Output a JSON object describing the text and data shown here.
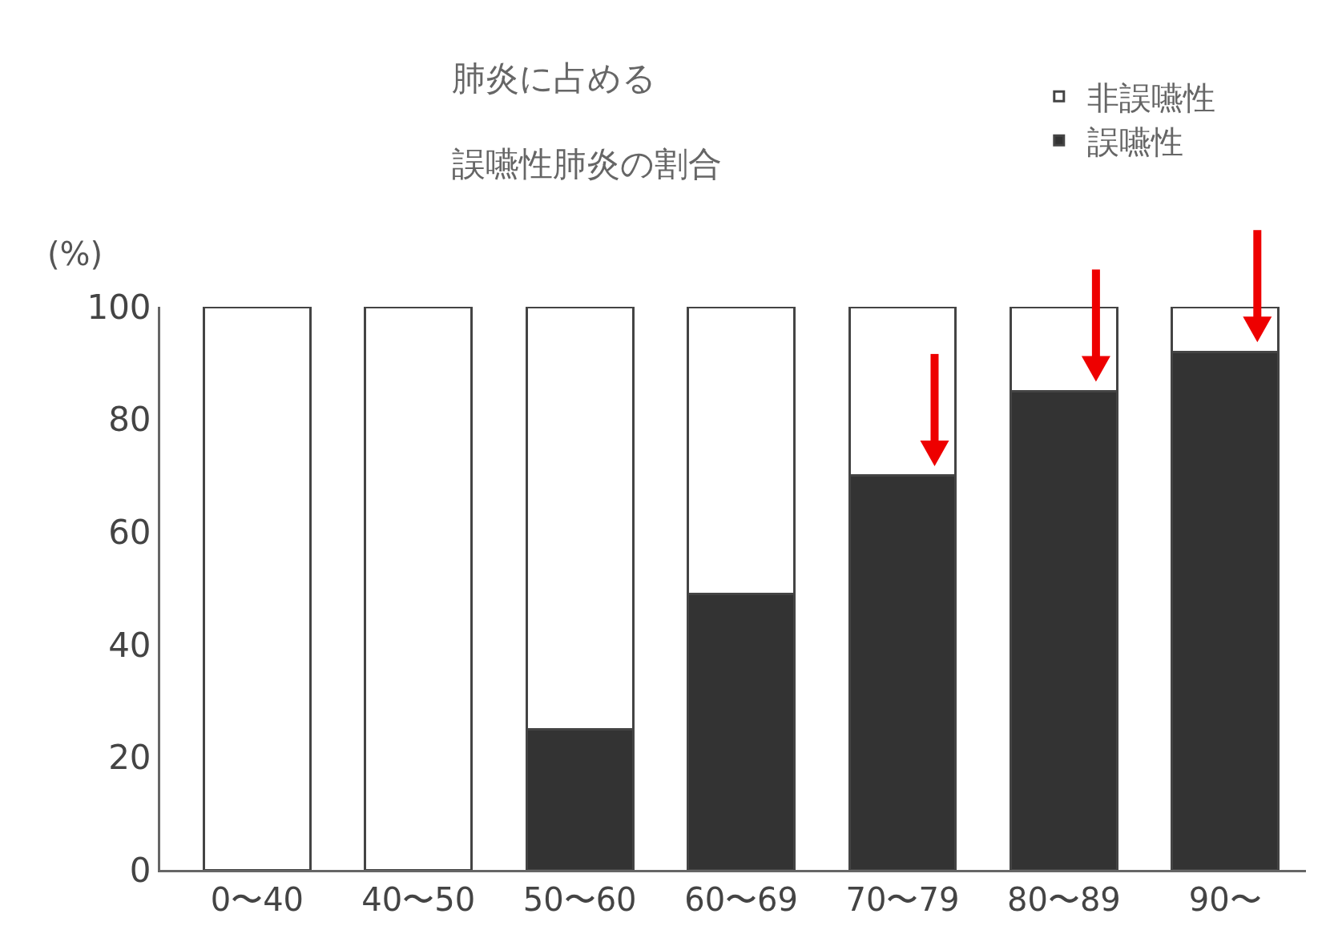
{
  "chart_data": {
    "type": "bar",
    "title": "肺炎に占める",
    "subtitle": "誤嚥性肺炎の割合",
    "ylabel": "(%)",
    "categories": [
      "0〜40",
      "40〜50",
      "50〜60",
      "60〜69",
      "70〜79",
      "80〜89",
      "90〜"
    ],
    "stacked": true,
    "series": [
      {
        "name": "誤嚥性",
        "color": "#333333",
        "values": [
          0,
          0,
          25,
          49,
          70,
          85,
          92
        ]
      },
      {
        "name": "非誤嚥性",
        "color": "#ffffff",
        "values": [
          100,
          100,
          75,
          51,
          30,
          15,
          8
        ]
      }
    ],
    "ylim": [
      0,
      100
    ],
    "yticks": [
      0,
      20,
      40,
      60,
      80,
      100
    ],
    "grid": false,
    "legend": "top right"
  }
}
